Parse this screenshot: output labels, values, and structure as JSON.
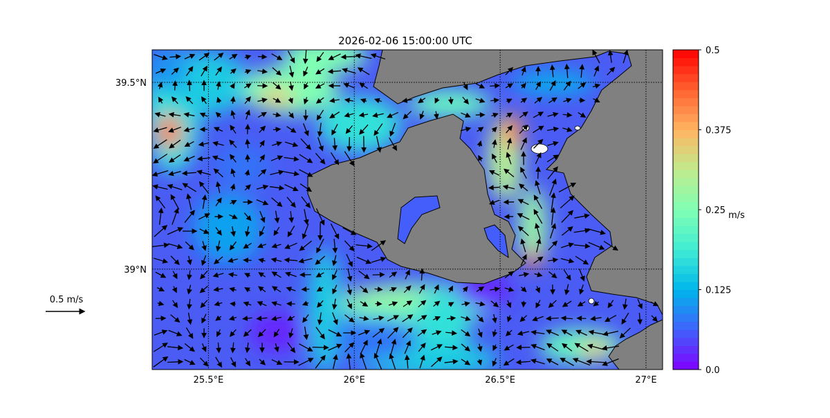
{
  "title": "2026-02-06 15:00:00 UTC",
  "map": {
    "lon_range": [
      25.307,
      27.057
    ],
    "lat_range": [
      38.731,
      39.587
    ],
    "lon_ticks": [
      {
        "value": 25.5,
        "label": "25.5°E"
      },
      {
        "value": 26.0,
        "label": "26°E"
      },
      {
        "value": 26.5,
        "label": "26.5°E"
      },
      {
        "value": 27.0,
        "label": "27°E"
      }
    ],
    "lat_ticks": [
      {
        "value": 39.5,
        "label": "39.5°N"
      },
      {
        "value": 39.0,
        "label": "39°N"
      }
    ],
    "land_color": "#808080",
    "gridlines": "dotted"
  },
  "colorbar": {
    "label": "m/s",
    "range": [
      0.0,
      0.5
    ],
    "ticks": [
      "0.0",
      "0.125",
      "0.25",
      "0.375",
      "0.5"
    ],
    "colormap": [
      "#8000ff",
      "#4062fa",
      "#00b5eb",
      "#40ecd4",
      "#80ffb4",
      "#c0eb8d",
      "#ffb462",
      "#ff6230",
      "#ff0000"
    ]
  },
  "reference_arrow": {
    "label": "0.5 m/s",
    "speed": 0.5
  }
}
